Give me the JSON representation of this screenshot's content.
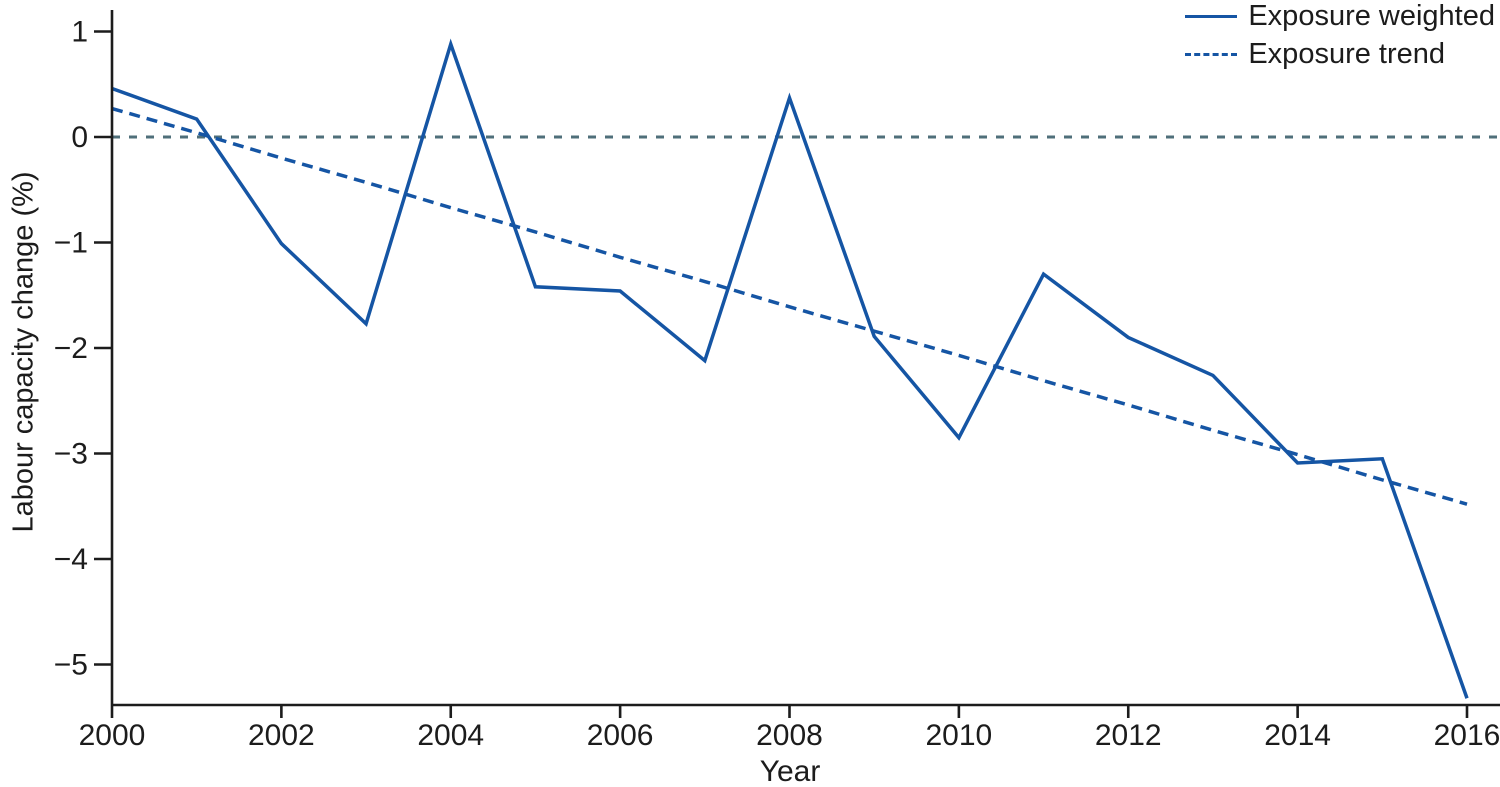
{
  "colors": {
    "series_blue": "#1555a4",
    "zero_line": "#4f6f7a",
    "axis_and_text": "#1c1c1c",
    "background": "#ffffff"
  },
  "chart_data": {
    "type": "line",
    "title": "",
    "xlabel": "Year",
    "ylabel": "Labour capacity change (%)",
    "x_range": [
      2000,
      2016
    ],
    "y_range": [
      -5.4,
      1.2
    ],
    "grid": "off",
    "legend_position": "top-right",
    "x_ticks": [
      {
        "value": 2000,
        "label": "2000"
      },
      {
        "value": 2002,
        "label": "2002"
      },
      {
        "value": 2004,
        "label": "2004"
      },
      {
        "value": 2006,
        "label": "2006"
      },
      {
        "value": 2008,
        "label": "2008"
      },
      {
        "value": 2010,
        "label": "2010"
      },
      {
        "value": 2012,
        "label": "2012"
      },
      {
        "value": 2014,
        "label": "2014"
      },
      {
        "value": 2016,
        "label": "2016"
      }
    ],
    "y_ticks": [
      {
        "value": 1,
        "label": "1"
      },
      {
        "value": 0,
        "label": "0"
      },
      {
        "value": -1,
        "label": "−1"
      },
      {
        "value": -2,
        "label": "−2"
      },
      {
        "value": -3,
        "label": "−3"
      },
      {
        "value": -4,
        "label": "−4"
      },
      {
        "value": -5,
        "label": "−5"
      }
    ],
    "x": [
      2000,
      2001,
      2002,
      2003,
      2004,
      2005,
      2006,
      2007,
      2008,
      2009,
      2010,
      2011,
      2012,
      2013,
      2014,
      2015,
      2016
    ],
    "series": [
      {
        "name": "Exposure weighted",
        "style": "solid",
        "values": [
          0.46,
          0.17,
          -1.01,
          -1.77,
          0.88,
          -1.42,
          -1.46,
          -2.12,
          0.37,
          -1.89,
          -2.85,
          -1.3,
          -1.9,
          -2.26,
          -3.09,
          -3.05,
          -5.32
        ]
      },
      {
        "name": "Exposure trend",
        "style": "dashed",
        "values": [
          0.27,
          0.04,
          -0.2,
          -0.43,
          -0.67,
          -0.9,
          -1.14,
          -1.37,
          -1.61,
          -1.84,
          -2.07,
          -2.31,
          -2.54,
          -2.78,
          -3.01,
          -3.25,
          -3.48
        ]
      }
    ],
    "reference_line": {
      "y": 0,
      "style": "dashed"
    }
  }
}
